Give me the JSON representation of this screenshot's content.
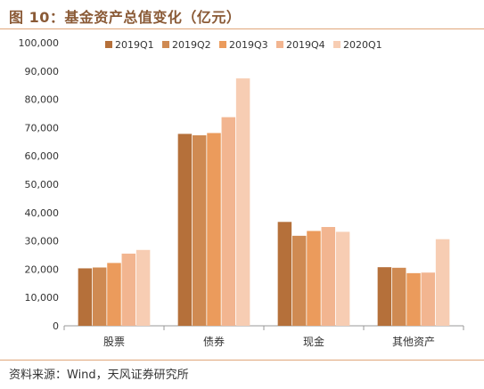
{
  "title": "图 10：基金资产总值变化（亿元）",
  "source": "资料来源：Wind，天风证券研究所",
  "colors": [
    "#b5703a",
    "#cf8a52",
    "#eb9b5c",
    "#f2b590",
    "#f7cdb3"
  ],
  "chart_data": {
    "type": "bar",
    "categories": [
      "股票",
      "债券",
      "现金",
      "其他资产"
    ],
    "series": [
      {
        "name": "2019Q1",
        "values": [
          20300,
          67800,
          36700,
          20700
        ]
      },
      {
        "name": "2019Q2",
        "values": [
          20600,
          67300,
          31800,
          20500
        ]
      },
      {
        "name": "2019Q3",
        "values": [
          22200,
          68100,
          33500,
          18600
        ]
      },
      {
        "name": "2019Q4",
        "values": [
          25500,
          73700,
          34900,
          18800
        ]
      },
      {
        "name": "2020Q1",
        "values": [
          26800,
          87400,
          33200,
          30600
        ]
      }
    ],
    "ylim": [
      0,
      100000
    ],
    "yticks": [
      "0",
      "10,000",
      "20,000",
      "30,000",
      "40,000",
      "50,000",
      "60,000",
      "70,000",
      "80,000",
      "90,000",
      "100,000"
    ],
    "legend_position": "top-center",
    "grid": false
  }
}
